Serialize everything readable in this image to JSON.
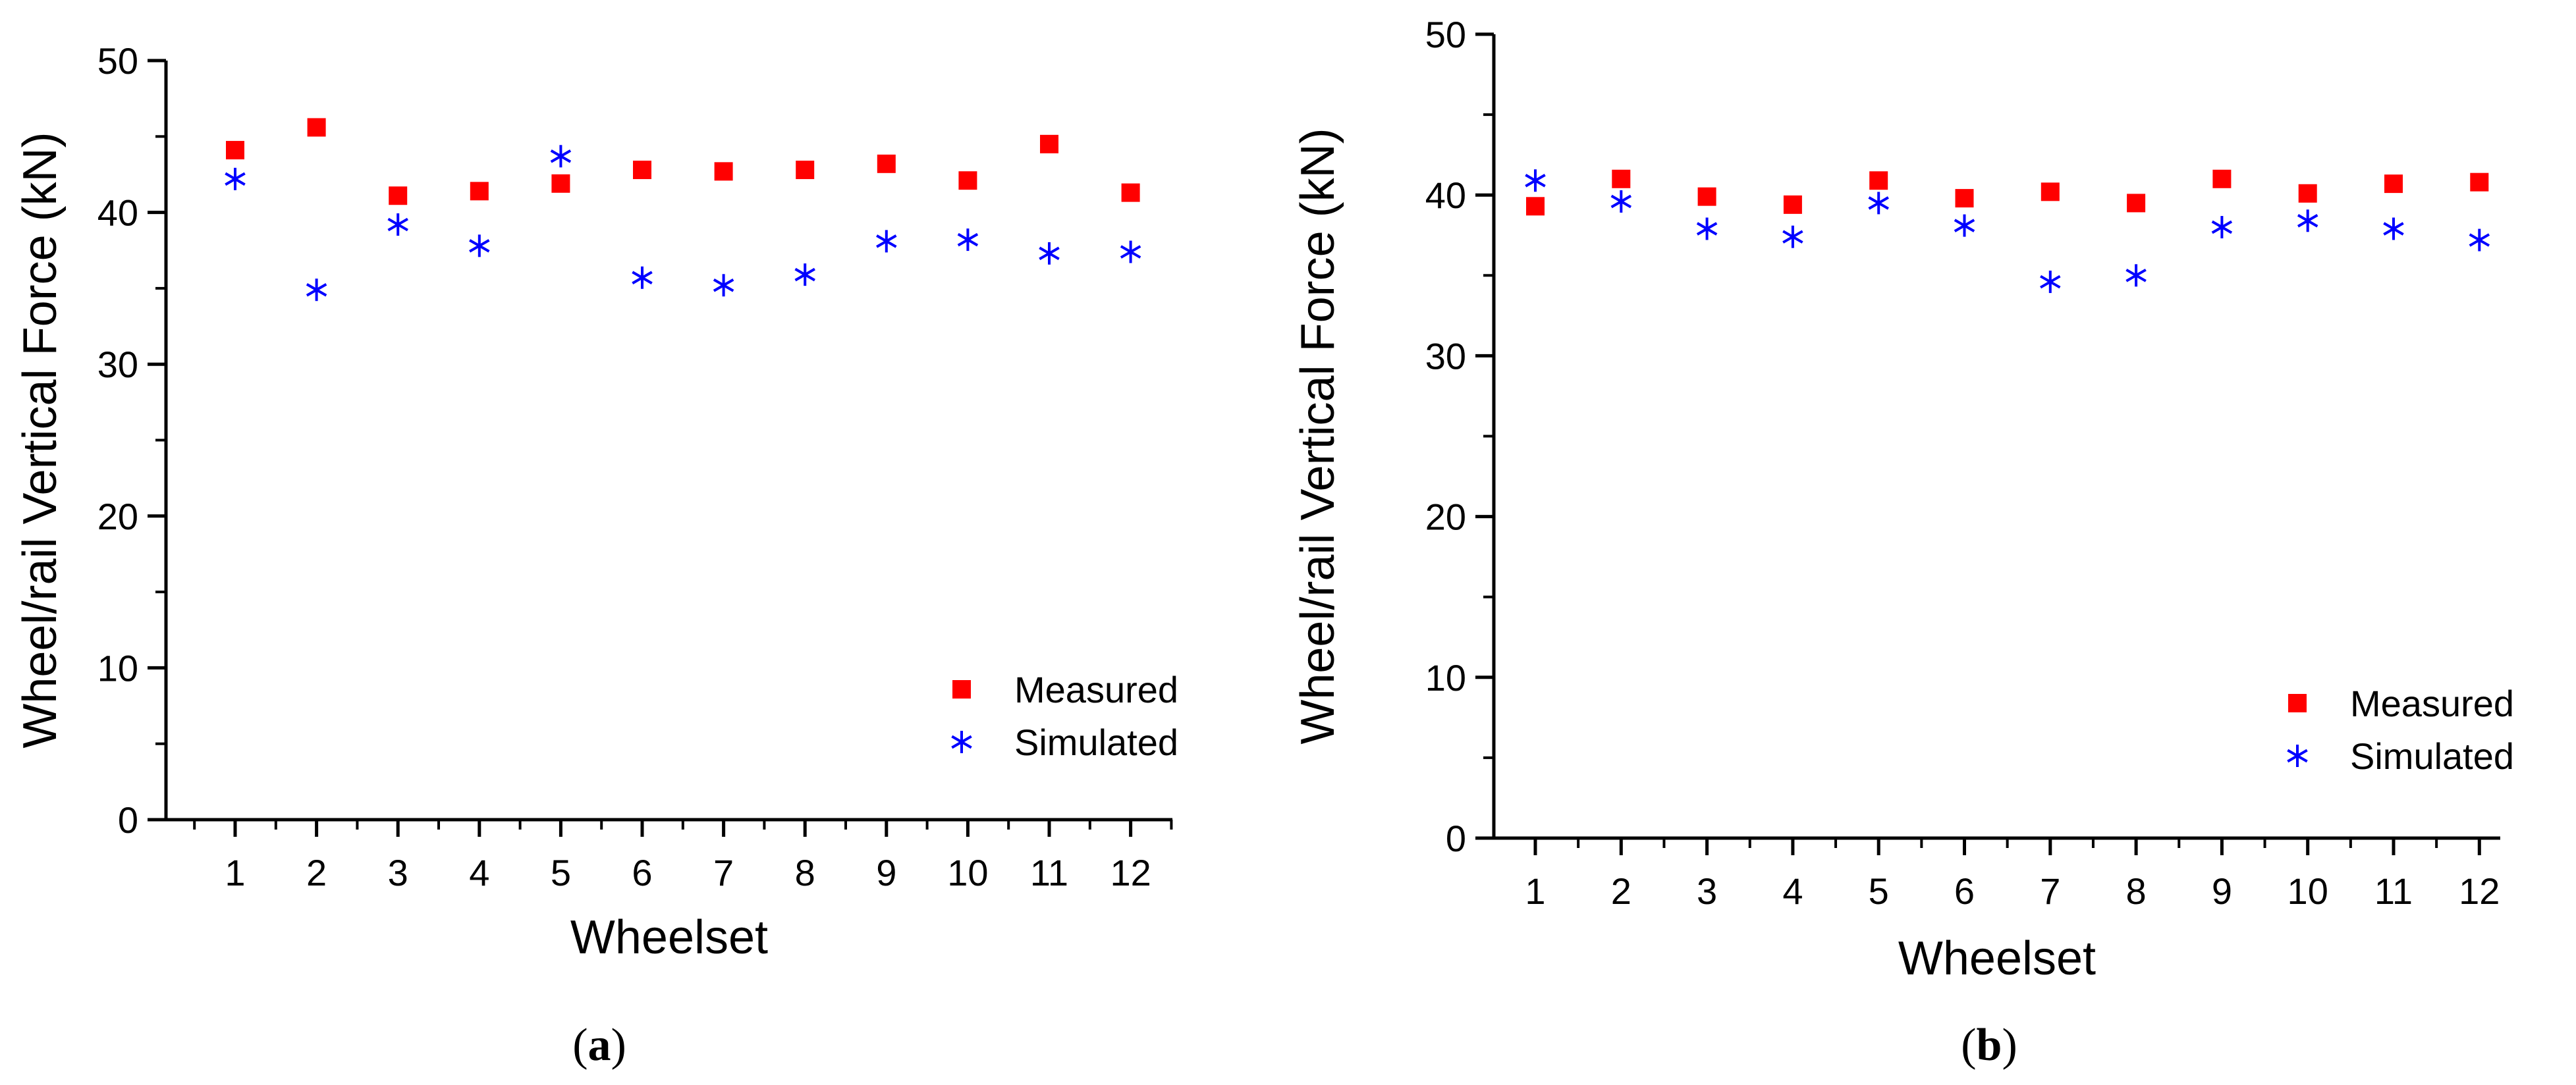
{
  "chart_data": [
    {
      "type": "scatter",
      "caption_letter": "a",
      "xlabel": "Wheelset",
      "ylabel": "Wheel/rail Vertical Force (kN)",
      "ylim": [
        0,
        50
      ],
      "yticks": [
        0,
        10,
        20,
        30,
        40,
        50
      ],
      "x": [
        1,
        2,
        3,
        4,
        5,
        6,
        7,
        8,
        9,
        10,
        11,
        12
      ],
      "xtick_labels": [
        "1",
        "2",
        "3",
        "4",
        "5",
        "6",
        "7",
        "8",
        "9",
        "10",
        "11",
        "12"
      ],
      "legend_position": "bottom-right",
      "series": [
        {
          "name": "Measured",
          "marker": "square",
          "color": "#ff0000",
          "values": [
            44.1,
            45.6,
            41.1,
            41.4,
            41.9,
            42.8,
            42.7,
            42.8,
            43.2,
            42.1,
            44.5,
            41.3
          ]
        },
        {
          "name": "Simulated",
          "marker": "asterisk",
          "color": "#0000ff",
          "values": [
            42.2,
            34.9,
            39.2,
            37.8,
            43.7,
            35.7,
            35.2,
            35.9,
            38.1,
            38.2,
            37.3,
            37.4
          ]
        }
      ]
    },
    {
      "type": "scatter",
      "caption_letter": "b",
      "xlabel": "Wheelset",
      "ylabel": "Wheel/rail Vertical Force (kN)",
      "ylim": [
        0,
        50
      ],
      "yticks": [
        0,
        10,
        20,
        30,
        40,
        50
      ],
      "x": [
        1,
        2,
        3,
        4,
        5,
        6,
        7,
        8,
        9,
        10,
        11,
        12
      ],
      "xtick_labels": [
        "1",
        "2",
        "3",
        "4",
        "5",
        "6",
        "7",
        "8",
        "9",
        "10",
        "11",
        "12"
      ],
      "legend_position": "bottom-right",
      "series": [
        {
          "name": "Measured",
          "marker": "square",
          "color": "#ff0000",
          "values": [
            39.3,
            41.0,
            39.9,
            39.4,
            40.9,
            39.8,
            40.2,
            39.5,
            41.0,
            40.1,
            40.7,
            40.8
          ]
        },
        {
          "name": "Simulated",
          "marker": "asterisk",
          "color": "#0000ff",
          "values": [
            40.9,
            39.6,
            37.9,
            37.4,
            39.5,
            38.1,
            34.6,
            35.0,
            38.0,
            38.4,
            37.9,
            37.2
          ]
        }
      ]
    }
  ]
}
